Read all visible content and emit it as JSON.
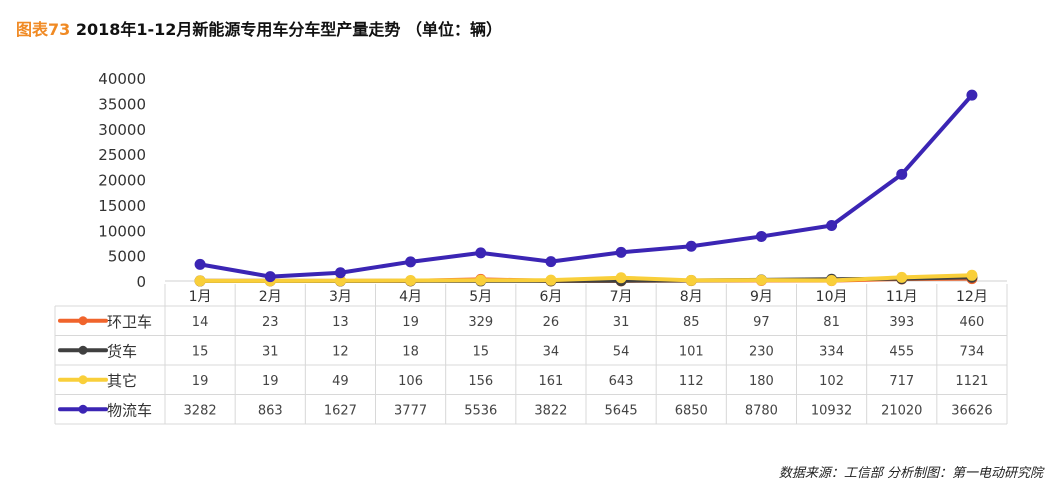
{
  "title": {
    "prefix": "图表73",
    "text": " 2018年1-12月新能源专用车分车型产量走势 （单位：辆）"
  },
  "source": "数据来源：工信部 分析制图：第一电动研究院",
  "chart_data": {
    "type": "line",
    "title": "2018年1-12月新能源专用车分车型产量走势 （单位：辆）",
    "categories": [
      "1月",
      "2月",
      "3月",
      "4月",
      "5月",
      "6月",
      "7月",
      "8月",
      "9月",
      "10月",
      "11月",
      "12月"
    ],
    "ylim": [
      0,
      40000
    ],
    "yticks": [
      0,
      5000,
      10000,
      15000,
      20000,
      25000,
      30000,
      35000,
      40000
    ],
    "grid": false,
    "legend": "data-table",
    "series": [
      {
        "name": "环卫车",
        "color": "#f0642c",
        "values": [
          14,
          23,
          13,
          19,
          329,
          26,
          31,
          85,
          97,
          81,
          393,
          460
        ]
      },
      {
        "name": "货车",
        "color": "#404040",
        "values": [
          15,
          31,
          12,
          18,
          15,
          34,
          54,
          101,
          230,
          334,
          455,
          734
        ]
      },
      {
        "name": "其它",
        "color": "#f9cf3a",
        "values": [
          19,
          19,
          49,
          106,
          156,
          161,
          643,
          112,
          180,
          102,
          717,
          1121
        ]
      },
      {
        "name": "物流车",
        "color": "#3b25b4",
        "values": [
          3282,
          863,
          1627,
          3777,
          5536,
          3822,
          5645,
          6850,
          8780,
          10932,
          21020,
          36626
        ]
      }
    ]
  }
}
